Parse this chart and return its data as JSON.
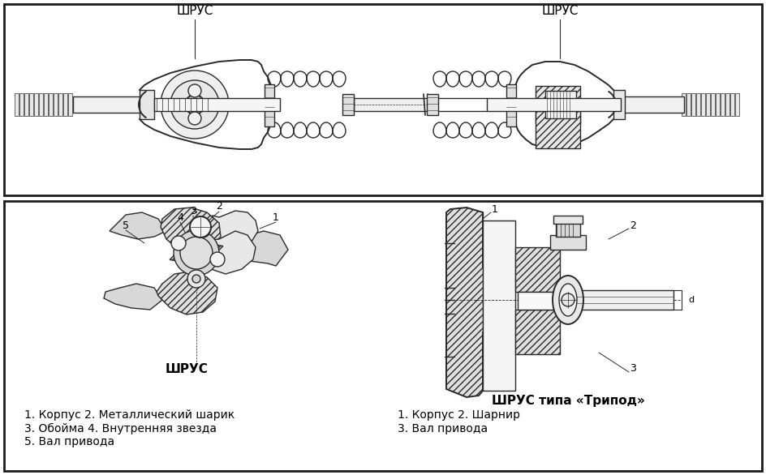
{
  "bg_color": "#ffffff",
  "panel_bg": "#ffffff",
  "border_color": "#1a1a1a",
  "line_color": "#2a2a2a",
  "hatch_color": "#555555",
  "fill_light": "#f0f0f0",
  "fill_mid": "#d8d8d8",
  "fill_dark": "#b8b8b8",
  "text_color": "#000000",
  "title_top_left": "ШРУС",
  "title_top_right": "ШРУС",
  "label_bottom_left": "ШРУС",
  "label_bottom_right": "ШРУС типа «Трипод»",
  "legend_left_line1": "1. Корпус 2. Металлический шарик",
  "legend_left_line2": "3. Обойма 4. Внутренняя звезда",
  "legend_left_line3": "5. Вал привода",
  "legend_right_line1": "1. Корпус 2. Шарнир",
  "legend_right_line2": "3. Вал привода",
  "font_title": 11,
  "font_label": 11,
  "font_legend": 10,
  "font_num": 9
}
